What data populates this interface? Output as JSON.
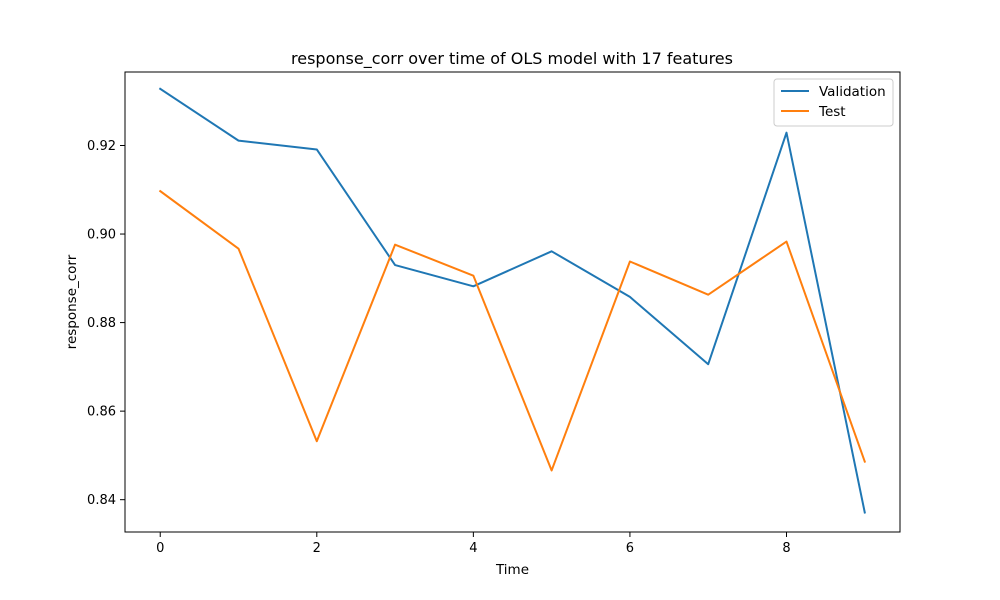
{
  "chart_data": {
    "type": "line",
    "title": "response_corr over time of OLS model with 17 features",
    "xlabel": "Time",
    "ylabel": "response_corr",
    "x": [
      0,
      1,
      2,
      3,
      4,
      5,
      6,
      7,
      8,
      9
    ],
    "xticks": [
      "0",
      "2",
      "4",
      "6",
      "8"
    ],
    "yticks": [
      "0.84",
      "0.86",
      "0.88",
      "0.90",
      "0.92"
    ],
    "xlim": [
      -0.45,
      9.45
    ],
    "ylim": [
      0.8327,
      0.9366
    ],
    "grid": false,
    "legend_position": "top-right",
    "series": [
      {
        "name": "Validation",
        "color": "#1f77b4",
        "values": [
          0.9328,
          0.9211,
          0.9191,
          0.893,
          0.8882,
          0.8961,
          0.8858,
          0.8706,
          0.9229,
          0.8371
        ]
      },
      {
        "name": "Test",
        "color": "#ff7f0e",
        "values": [
          0.9097,
          0.8967,
          0.8532,
          0.8976,
          0.8906,
          0.8466,
          0.8938,
          0.8863,
          0.8983,
          0.8486
        ]
      }
    ]
  }
}
